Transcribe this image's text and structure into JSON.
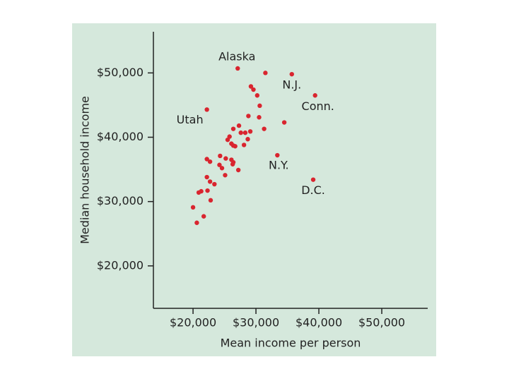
{
  "chart_data": {
    "type": "scatter",
    "xlabel": "Mean income per person",
    "ylabel": "Median household income",
    "color": "#d9252f",
    "xlim": [
      13700,
      57300
    ],
    "ylim": [
      13400,
      56400
    ],
    "xticks": [
      {
        "value": 20000,
        "label": "$20,000"
      },
      {
        "value": 30000,
        "label": "$30,000"
      },
      {
        "value": 40000,
        "label": "$40,000"
      },
      {
        "value": 50000,
        "label": "$50,000"
      }
    ],
    "yticks": [
      {
        "value": 20000,
        "label": "$20,000"
      },
      {
        "value": 30000,
        "label": "$30,000"
      },
      {
        "value": 40000,
        "label": "$40,000"
      },
      {
        "value": 50000,
        "label": "$50,000"
      }
    ],
    "x": [
      27100,
      31500,
      35700,
      39400,
      29200,
      29600,
      30200,
      22200,
      30600,
      28800,
      30500,
      34500,
      31300,
      26400,
      27300,
      27600,
      28300,
      29100,
      25800,
      28700,
      25500,
      26100,
      26400,
      28100,
      26700,
      33400,
      24300,
      25200,
      22200,
      22700,
      26100,
      26400,
      24200,
      24600,
      26300,
      27200,
      25100,
      22200,
      22700,
      23400,
      39100,
      21300,
      20900,
      22300,
      22800,
      20000,
      21700,
      20600
    ],
    "y": [
      50700,
      50000,
      49800,
      46500,
      47900,
      47400,
      46500,
      44300,
      44900,
      43300,
      43100,
      42300,
      41300,
      41300,
      41800,
      40700,
      40700,
      40900,
      40100,
      39700,
      39600,
      39000,
      38700,
      38800,
      38600,
      37200,
      37100,
      36700,
      36600,
      36200,
      36500,
      36100,
      35700,
      35200,
      35800,
      34900,
      34100,
      33800,
      33100,
      32700,
      33400,
      31600,
      31400,
      31700,
      30200,
      29100,
      27700,
      26700
    ],
    "point_labels": [
      "Alaska",
      null,
      "N.J.",
      "Conn.",
      null,
      null,
      null,
      "Utah",
      null,
      null,
      null,
      null,
      null,
      null,
      null,
      null,
      null,
      null,
      null,
      null,
      null,
      null,
      null,
      null,
      null,
      "N.Y.",
      null,
      null,
      null,
      null,
      null,
      null,
      null,
      null,
      null,
      null,
      null,
      null,
      null,
      null,
      "D.C.",
      null,
      null,
      null,
      null,
      null,
      null,
      null
    ]
  }
}
